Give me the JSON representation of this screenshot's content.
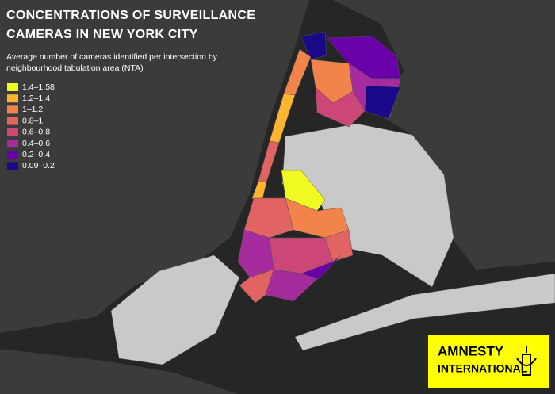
{
  "header": {
    "title_lines": [
      "CONCENTRATIONS OF SURVEILLANCE",
      "CAMERAS IN NEW YORK CITY"
    ],
    "subtitle_lines": [
      "Average number of cameras identified per intersection by",
      "neighbourhood tabulation area (NTA)"
    ]
  },
  "legend": {
    "items": [
      {
        "label": "1.4–1.58",
        "color": "#f0f921"
      },
      {
        "label": "1.2–1.4",
        "color": "#fdb42f"
      },
      {
        "label": "1–1.2",
        "color": "#f2844b"
      },
      {
        "label": "0.8–1",
        "color": "#e16462"
      },
      {
        "label": "0.6–0.8",
        "color": "#cc4778"
      },
      {
        "label": "0.4–0.6",
        "color": "#a62b9c"
      },
      {
        "label": "0.2–0.4",
        "color": "#6a00a8"
      },
      {
        "label": "0.09–0.2",
        "color": "#1a0a8a"
      }
    ]
  },
  "logo": {
    "lines": [
      "AMNESTY",
      "INTERNATIONAL"
    ]
  }
}
